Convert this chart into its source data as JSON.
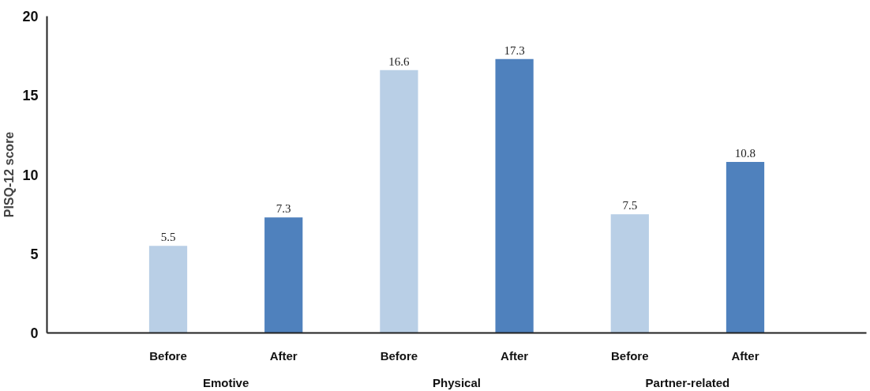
{
  "chart_data": {
    "type": "bar",
    "ylabel": "PISQ-12 score",
    "categories": [
      "Emotive",
      "Physical",
      "Partner-related"
    ],
    "series": [
      {
        "name": "Before",
        "color": "#b9cfe6",
        "values": [
          5.5,
          16.6,
          7.5
        ]
      },
      {
        "name": "After",
        "color": "#4f81bd",
        "values": [
          7.3,
          17.3,
          10.8
        ]
      }
    ],
    "ylim": [
      0,
      20
    ],
    "yticks": [
      0,
      5,
      10,
      15,
      20
    ],
    "grid": false,
    "legend": false,
    "data_labels": true
  }
}
